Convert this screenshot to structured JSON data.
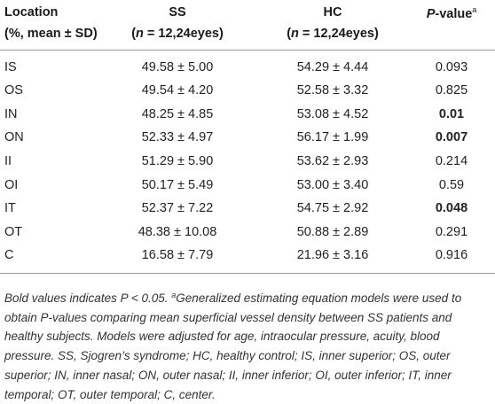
{
  "header": {
    "location_line1": "Location",
    "location_line2": "(%, mean ± SD)",
    "ss_line1": "SS",
    "ss_line2_pre": "(",
    "ss_line2_n": "n",
    "ss_line2_post": " = 12,24eyes)",
    "hc_line1": "HC",
    "hc_line2_pre": "(",
    "hc_line2_n": "n",
    "hc_line2_post": " = 12,24eyes)",
    "p_label": "P",
    "p_suffix": "-value",
    "p_sup": "a"
  },
  "rows": [
    {
      "loc": "IS",
      "ss": "49.58 ± 5.00",
      "hc": "54.29 ± 4.44",
      "p": "0.093",
      "bold": false
    },
    {
      "loc": "OS",
      "ss": "49.54 ± 4.20",
      "hc": "52.58 ± 3.32",
      "p": "0.825",
      "bold": false
    },
    {
      "loc": "IN",
      "ss": "48.25 ± 4.85",
      "hc": "53.08 ± 4.52",
      "p": "0.01",
      "bold": true
    },
    {
      "loc": "ON",
      "ss": "52.33 ± 4.97",
      "hc": "56.17 ± 1.99",
      "p": "0.007",
      "bold": true
    },
    {
      "loc": "II",
      "ss": "51.29 ± 5.90",
      "hc": "53.62 ± 2.93",
      "p": "0.214",
      "bold": false
    },
    {
      "loc": "OI",
      "ss": "50.17 ± 5.49",
      "hc": "53.00 ± 3.40",
      "p": "0.59",
      "bold": false
    },
    {
      "loc": "IT",
      "ss": "52.37 ± 7.22",
      "hc": "54.75 ± 2.92",
      "p": "0.048",
      "bold": true
    },
    {
      "loc": "OT",
      "ss": "48.38 ± 10.08",
      "hc": "50.88 ± 2.89",
      "p": "0.291",
      "bold": false
    },
    {
      "loc": "C",
      "ss": "16.58 ± 7.79",
      "hc": "21.96 ± 3.16",
      "p": "0.916",
      "bold": false
    }
  ],
  "footnote": {
    "bold_note": "Bold values indicates P < 0.05. ",
    "sup": "a",
    "text": "Generalized estimating equation models were used to obtain P-values comparing mean superficial vessel density between SS patients and healthy subjects. Models were adjusted for age, intraocular pressure, acuity, blood pressure. SS, Sjogren’s syndrome; HC, healthy control; IS, inner superior; OS, outer superior; IN, inner nasal; ON, outer nasal; II, inner inferior; OI, outer inferior; IT, inner temporal; OT, outer temporal; C, center."
  }
}
